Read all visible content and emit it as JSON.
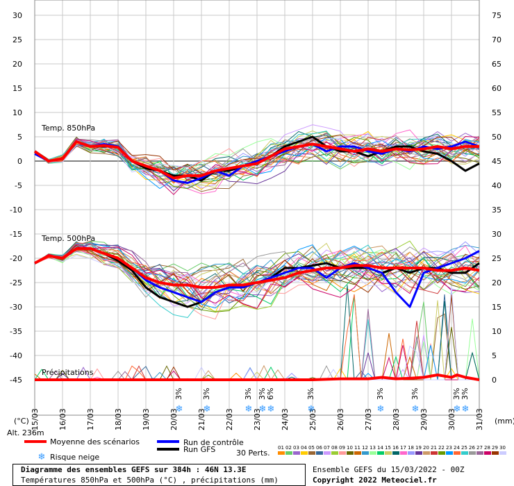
{
  "chart_data": {
    "type": "line",
    "title": "Diagramme des ensembles GEFS sur 384h : 46N 13.3E",
    "subtitle": "Températures 850hPa et 500hPa (°C) , précipitations (mm)",
    "run_info": "Ensemble GEFS du 15/03/2022 - 00Z",
    "copyright": "Copyright 2022 Meteociel.fr",
    "altitude": "Alt. 236m",
    "left_unit": "(°C)",
    "right_unit": "(mm)",
    "ylim_left": [
      -45,
      30
    ],
    "ylim_right": [
      0,
      75
    ],
    "y_ticks_left": [
      "30",
      "25",
      "20",
      "15",
      "10",
      "5",
      "0",
      "-5",
      "-10",
      "-15",
      "-20",
      "-25",
      "-30",
      "-35",
      "-40",
      "-45"
    ],
    "y_ticks_right": [
      "75",
      "70",
      "65",
      "60",
      "55",
      "50",
      "45",
      "40",
      "35",
      "30",
      "25",
      "20",
      "15",
      "10",
      "5",
      "0"
    ],
    "x_labels": [
      "15/03",
      "16/03",
      "17/03",
      "18/03",
      "19/03",
      "20/03",
      "21/03",
      "22/03",
      "23/03",
      "24/03",
      "25/03",
      "26/03",
      "27/03",
      "28/03",
      "29/03",
      "30/03",
      "31/03"
    ],
    "panel_labels": {
      "t850": "Temp. 850hPa",
      "t500": "Temp. 500hPa",
      "precip": "Précipitations"
    },
    "snow_risk": [
      {
        "day": 5.2,
        "pct": "3%"
      },
      {
        "day": 6.2,
        "pct": "3%"
      },
      {
        "day": 7.7,
        "pct": "3%"
      },
      {
        "day": 8.2,
        "pct": "3%"
      },
      {
        "day": 8.5,
        "pct": "6%"
      },
      {
        "day": 9.95,
        "pct": "3%"
      },
      {
        "day": 12.45,
        "pct": "3%"
      },
      {
        "day": 13.7,
        "pct": "3%"
      },
      {
        "day": 15.2,
        "pct": "3%"
      },
      {
        "day": 15.5,
        "pct": "3%"
      }
    ],
    "legend": {
      "mean": "Moyenne des scénarios",
      "control": "Run de contrôle",
      "gfs": "Run GFS",
      "snow": "Risque neige",
      "perts": "30 Perts."
    },
    "colors": {
      "mean": "#ff0000",
      "control": "#0000ff",
      "gfs": "#000000",
      "grid": "#c8c8c8",
      "zero_line": "#808080"
    },
    "perturbation_labels": [
      "01",
      "02",
      "03",
      "04",
      "05",
      "06",
      "07",
      "08",
      "09",
      "10",
      "11",
      "12",
      "13",
      "14",
      "15",
      "16",
      "17",
      "18",
      "19",
      "20",
      "21",
      "22",
      "23",
      "24",
      "25",
      "26",
      "27",
      "28",
      "29",
      "30"
    ],
    "perturbation_colors": [
      "#ff8c00",
      "#66cc66",
      "#9966cc",
      "#ffcc00",
      "#996633",
      "#336699",
      "#cc99ff",
      "#99cc33",
      "#ff9999",
      "#666600",
      "#cc6600",
      "#3399cc",
      "#99ff99",
      "#00cc66",
      "#cccc66",
      "#006666",
      "#ff66cc",
      "#9999ff",
      "#663399",
      "#cc9966",
      "#cc3333",
      "#669900",
      "#0099ff",
      "#ff6633",
      "#33cccc",
      "#999999",
      "#996699",
      "#cc0066",
      "#993300",
      "#ccccff"
    ],
    "series": [
      {
        "name": "Moyenne des scénarios",
        "level": "850hPa",
        "x": [
          0,
          0.5,
          1,
          1.5,
          2,
          2.5,
          3,
          3.5,
          4,
          4.5,
          5,
          5.5,
          6,
          6.5,
          7,
          7.5,
          8,
          8.5,
          9,
          9.5,
          10,
          10.5,
          11,
          11.5,
          12,
          12.5,
          13,
          13.5,
          14,
          14.5,
          15,
          15.5,
          16
        ],
        "y": [
          2,
          0,
          0.5,
          4,
          3,
          3.2,
          2.8,
          0,
          -1,
          -2,
          -3.5,
          -3,
          -3,
          -2,
          -1.5,
          -1,
          -0.5,
          1,
          2.5,
          3,
          3.5,
          3,
          2.5,
          2,
          2.5,
          2,
          2.5,
          2.3,
          2.5,
          3,
          2.5,
          3,
          3
        ]
      },
      {
        "name": "Run de contrôle",
        "level": "850hPa",
        "x": [
          0,
          0.5,
          1,
          1.5,
          2,
          2.5,
          3,
          3.5,
          4,
          4.5,
          5,
          5.5,
          6,
          6.5,
          7,
          7.5,
          8,
          8.5,
          9,
          9.5,
          10,
          10.5,
          11,
          11.5,
          12,
          12.5,
          13,
          13.5,
          14,
          14.5,
          15,
          15.5,
          16
        ],
        "y": [
          1.5,
          0,
          0.5,
          4,
          3,
          3.5,
          3,
          0,
          -1,
          -2,
          -4,
          -4.5,
          -3.5,
          -2,
          -3,
          -1,
          0,
          1,
          2,
          3,
          3.5,
          2,
          3,
          3,
          2,
          1.5,
          2.5,
          2,
          3,
          2.5,
          3,
          4,
          3
        ]
      },
      {
        "name": "Run GFS",
        "level": "850hPa",
        "x": [
          0,
          0.5,
          1,
          1.5,
          2,
          2.5,
          3,
          3.5,
          4,
          4.5,
          5,
          5.5,
          6,
          6.5,
          7,
          7.5,
          8,
          8.5,
          9,
          9.5,
          10,
          10.5,
          11,
          11.5,
          12,
          12.5,
          13,
          13.5,
          14,
          14.5,
          15,
          15.5,
          16
        ],
        "y": [
          2,
          0,
          0.5,
          4,
          3,
          3,
          3,
          0,
          -1.5,
          -2,
          -3,
          -3,
          -4,
          -2,
          -2,
          -1,
          0,
          1,
          3,
          4,
          5,
          3,
          2,
          2,
          1,
          2,
          3,
          3,
          2,
          1.5,
          0,
          -2,
          -0.5
        ]
      },
      {
        "name": "Moyenne des scénarios",
        "level": "500hPa",
        "x": [
          0,
          0.5,
          1,
          1.5,
          2,
          2.5,
          3,
          3.5,
          4,
          4.5,
          5,
          5.5,
          6,
          6.5,
          7,
          7.5,
          8,
          8.5,
          9,
          9.5,
          10,
          10.5,
          11,
          11.5,
          12,
          12.5,
          13,
          13.5,
          14,
          14.5,
          15,
          15.5,
          16
        ],
        "y": [
          -21,
          -19.5,
          -20,
          -18,
          -18,
          -19,
          -20,
          -22,
          -24,
          -25,
          -25.5,
          -25.5,
          -26,
          -26,
          -25.5,
          -25.5,
          -25,
          -24.5,
          -24,
          -23,
          -22.5,
          -22,
          -22,
          -21.5,
          -21.5,
          -22,
          -22,
          -22,
          -22,
          -22.5,
          -22.5,
          -22,
          -22.5
        ]
      },
      {
        "name": "Run de contrôle",
        "level": "500hPa",
        "x": [
          0,
          0.5,
          1,
          1.5,
          2,
          2.5,
          3,
          3.5,
          4,
          4.5,
          5,
          5.5,
          6,
          6.5,
          7,
          7.5,
          8,
          8.5,
          9,
          9.5,
          10,
          10.5,
          11,
          11.5,
          12,
          12.5,
          13,
          13.5,
          14,
          14.5,
          15,
          15.5,
          16
        ],
        "y": [
          -21,
          -19.5,
          -20,
          -18,
          -18,
          -19,
          -20,
          -22,
          -24.5,
          -26,
          -27,
          -28,
          -29,
          -27,
          -26,
          -26,
          -25,
          -24,
          -23,
          -22,
          -22,
          -24,
          -22,
          -21,
          -22,
          -23,
          -27,
          -30,
          -23,
          -22,
          -21,
          -20,
          -18.5
        ]
      },
      {
        "name": "Run GFS",
        "level": "500hPa",
        "x": [
          0,
          0.5,
          1,
          1.5,
          2,
          2.5,
          3,
          3.5,
          4,
          4.5,
          5,
          5.5,
          6,
          6.5,
          7,
          7.5,
          8,
          8.5,
          9,
          9.5,
          10,
          10.5,
          11,
          11.5,
          12,
          12.5,
          13,
          13.5,
          14,
          14.5,
          15,
          15.5,
          16
        ],
        "y": [
          -21,
          -19.5,
          -20,
          -18,
          -18,
          -19,
          -20.5,
          -22.5,
          -26,
          -28,
          -29,
          -30,
          -29,
          -27,
          -26,
          -26,
          -25,
          -24,
          -22,
          -22,
          -21.5,
          -21,
          -22,
          -22,
          -22,
          -23,
          -22,
          -23,
          -22,
          -22,
          -23,
          -23,
          -21
        ]
      },
      {
        "name": "Moyenne des scénarios",
        "level": "precip",
        "x": [
          0,
          1,
          2,
          3,
          4,
          5,
          6,
          7,
          8,
          9,
          10,
          11,
          12,
          12.5,
          13,
          13.5,
          14,
          14.5,
          15,
          15.2,
          15.5,
          16
        ],
        "y": [
          0,
          0,
          0,
          0,
          0,
          0,
          0,
          0,
          0,
          0,
          0,
          0.2,
          0.2,
          0.5,
          0.2,
          0.3,
          0.5,
          1,
          0.5,
          1,
          0.5,
          0
        ]
      }
    ]
  }
}
